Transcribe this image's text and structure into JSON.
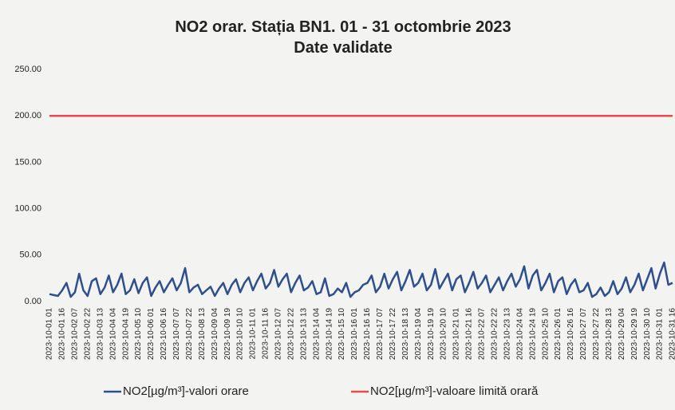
{
  "chart_data": {
    "type": "line",
    "title": "NO2 orar. Stația BN1. 01 - 31 octombrie 2023",
    "subtitle": "Date validate",
    "categories": [
      "2023-10-01 01",
      null,
      null,
      "2023-10-01 16",
      null,
      null,
      "2023-10-02 07",
      null,
      null,
      "2023-10-02 22",
      null,
      null,
      "2023-10-03 13",
      null,
      null,
      "2023-10-04 04",
      null,
      null,
      "2023-10-04 19",
      null,
      null,
      "2023-10-05 10",
      null,
      null,
      "2023-10-06 01",
      null,
      null,
      "2023-10-06 16",
      null,
      null,
      "2023-10-07 07",
      null,
      null,
      "2023-10-07 22",
      null,
      null,
      "2023-10-08 13",
      null,
      null,
      "2023-10-09 04",
      null,
      null,
      "2023-10-09 19",
      null,
      null,
      "2023-10-10 10",
      null,
      null,
      "2023-10-11 01",
      null,
      null,
      "2023-10-11 16",
      null,
      null,
      "2023-10-12 07",
      null,
      null,
      "2023-10-12 22",
      null,
      null,
      "2023-10-13 13",
      null,
      null,
      "2023-10-14 04",
      null,
      null,
      "2023-10-14 19",
      null,
      null,
      "2023-10-15 10",
      null,
      null,
      "2023-10-16 01",
      null,
      null,
      "2023-10-16 16",
      null,
      null,
      "2023-10-17 07",
      null,
      null,
      "2023-10-17 22",
      null,
      null,
      "2023-10-18 13",
      null,
      null,
      "2023-10-19 04",
      null,
      null,
      "2023-10-19 19",
      null,
      null,
      "2023-10-20 10",
      null,
      null,
      "2023-10-21 01",
      null,
      null,
      "2023-10-21 16",
      null,
      null,
      "2023-10-22 07",
      null,
      null,
      "2023-10-22 22",
      null,
      null,
      "2023-10-23 13",
      null,
      null,
      "2023-10-24 04",
      null,
      null,
      "2023-10-24 19",
      null,
      null,
      "2023-10-25 10",
      null,
      null,
      "2023-10-26 01",
      null,
      null,
      "2023-10-26 16",
      null,
      null,
      "2023-10-27 07",
      null,
      null,
      "2023-10-27 22",
      null,
      null,
      "2023-10-28 13",
      null,
      null,
      "2023-10-29 04",
      null,
      null,
      "2023-10-29 19",
      null,
      null,
      "2023-10-30 10",
      null,
      null,
      "2023-10-31 01",
      null,
      null,
      "2023-10-31 16"
    ],
    "series": [
      {
        "name": "NO2[µg/m³]-valori orare",
        "color": "#2e4f8e",
        "values": [
          8,
          7,
          6,
          12,
          20,
          5,
          10,
          30,
          12,
          6,
          22,
          25,
          8,
          15,
          28,
          10,
          18,
          30,
          8,
          12,
          24,
          9,
          20,
          26,
          6,
          15,
          22,
          10,
          18,
          25,
          12,
          20,
          36,
          10,
          15,
          18,
          8,
          12,
          16,
          6,
          14,
          20,
          8,
          18,
          24,
          10,
          20,
          26,
          12,
          22,
          30,
          14,
          20,
          34,
          16,
          24,
          30,
          10,
          20,
          28,
          12,
          15,
          22,
          8,
          10,
          25,
          6,
          8,
          14,
          10,
          20,
          5,
          10,
          12,
          18,
          20,
          28,
          10,
          16,
          30,
          14,
          24,
          32,
          12,
          22,
          34,
          16,
          20,
          30,
          12,
          18,
          35,
          14,
          22,
          30,
          12,
          24,
          28,
          10,
          20,
          32,
          14,
          20,
          28,
          10,
          18,
          26,
          12,
          22,
          30,
          16,
          24,
          38,
          14,
          28,
          34,
          12,
          20,
          30,
          10,
          22,
          26,
          8,
          18,
          24,
          10,
          12,
          20,
          5,
          8,
          15,
          6,
          10,
          22,
          8,
          14,
          26,
          10,
          18,
          30,
          12,
          24,
          36,
          14,
          30,
          42,
          18,
          20
        ]
      },
      {
        "name": "NO2[µg/m³]-valoare limită orară",
        "color": "#e84a4f",
        "values": [
          200,
          200,
          200,
          200,
          200,
          200,
          200,
          200,
          200,
          200,
          200,
          200,
          200,
          200,
          200,
          200,
          200,
          200,
          200,
          200,
          200,
          200,
          200,
          200,
          200,
          200,
          200,
          200,
          200,
          200,
          200,
          200,
          200,
          200,
          200,
          200,
          200,
          200,
          200,
          200,
          200,
          200,
          200,
          200,
          200,
          200,
          200,
          200,
          200,
          200,
          200,
          200,
          200,
          200,
          200,
          200,
          200,
          200,
          200,
          200,
          200,
          200,
          200,
          200,
          200,
          200,
          200,
          200,
          200,
          200,
          200,
          200,
          200,
          200,
          200,
          200,
          200,
          200,
          200,
          200,
          200,
          200,
          200,
          200,
          200,
          200,
          200,
          200,
          200,
          200,
          200,
          200,
          200,
          200,
          200,
          200,
          200,
          200,
          200,
          200,
          200,
          200,
          200,
          200,
          200,
          200,
          200,
          200,
          200,
          200,
          200,
          200,
          200,
          200,
          200,
          200,
          200,
          200,
          200,
          200,
          200,
          200,
          200,
          200,
          200,
          200,
          200,
          200,
          200,
          200,
          200,
          200,
          200,
          200,
          200,
          200,
          200,
          200,
          200,
          200,
          200,
          200,
          200,
          200,
          200,
          200,
          200,
          200
        ]
      }
    ],
    "ylim": [
      0,
      250
    ],
    "yticks": [
      {
        "value": 0,
        "label": "0.00"
      },
      {
        "value": 50,
        "label": "50.00"
      },
      {
        "value": 100,
        "label": "100.00"
      },
      {
        "value": 150,
        "label": "150.00"
      },
      {
        "value": 200,
        "label": "200.00"
      },
      {
        "value": 250,
        "label": "250.00"
      }
    ],
    "grid": false,
    "legend": "bottom"
  }
}
